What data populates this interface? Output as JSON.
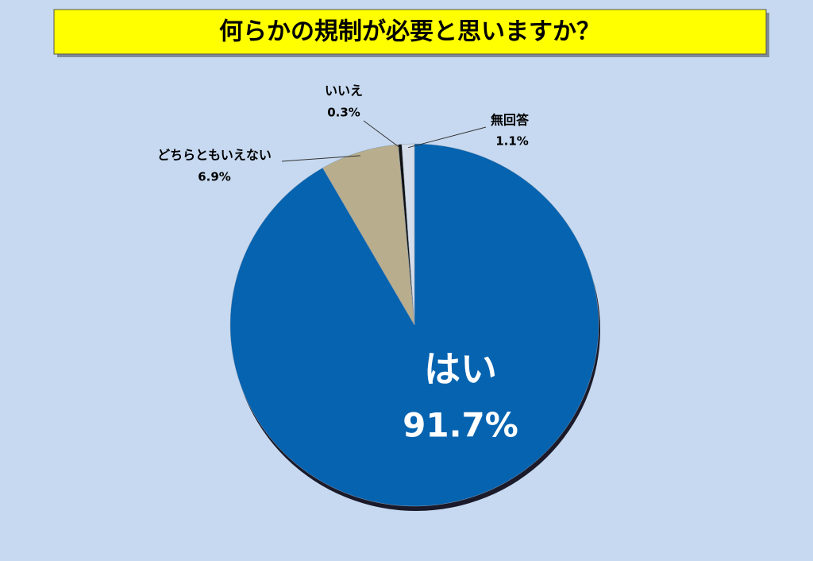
{
  "chart_data": {
    "type": "pie",
    "title": "何らかの規制が必要と思いますか？",
    "categories": [
      "はい",
      "どちらともいえない",
      "いいえ",
      "無回答"
    ],
    "values": [
      91.7,
      6.9,
      0.3,
      1.1
    ],
    "value_labels": [
      "91.7%",
      "6.9%",
      "0.3%",
      "1.1%"
    ],
    "colors": [
      "#0563b0",
      "#b8ad8c",
      "#111111",
      "#d4dde9"
    ]
  }
}
